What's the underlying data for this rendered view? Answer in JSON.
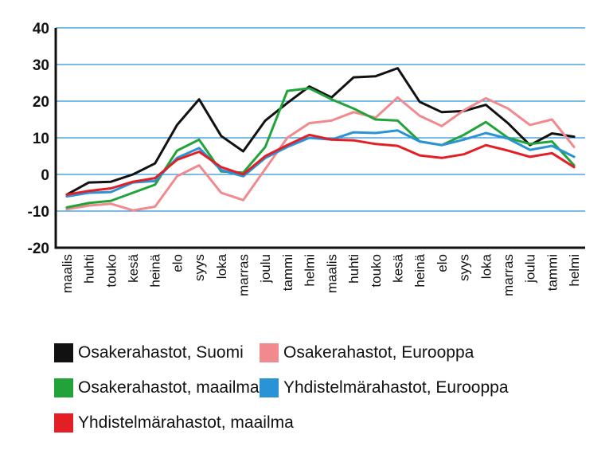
{
  "chart_data": {
    "type": "line",
    "categories": [
      "maalis",
      "huhti",
      "touko",
      "kesä",
      "heinä",
      "elo",
      "syys",
      "loka",
      "marras",
      "joulu",
      "tammi",
      "helmi",
      "maalis",
      "huhti",
      "touko",
      "kesä",
      "heinä",
      "elo",
      "syys",
      "loka",
      "marras",
      "joulu",
      "tammi",
      "helmi"
    ],
    "ylim": [
      -20,
      40
    ],
    "yticks": [
      -20,
      -10,
      0,
      10,
      20,
      30,
      40
    ],
    "ytick_labels": [
      "-20",
      "-10",
      "0",
      "10",
      "20",
      "30",
      "40"
    ],
    "grid": true,
    "legend_position": "bottom",
    "series": [
      {
        "name": "Osakerahastot, Suomi",
        "color": "#111111",
        "values": [
          -5.5,
          -2.2,
          -2.0,
          0.0,
          3.0,
          13.5,
          20.5,
          10.5,
          6.3,
          14.7,
          19.5,
          24.0,
          21.0,
          26.5,
          26.8,
          29.0,
          19.8,
          17.0,
          17.3,
          19.0,
          14.0,
          8.0,
          11.2,
          10.3
        ]
      },
      {
        "name": "Osakerahastot, Eurooppa",
        "color": "#f08a8f",
        "values": [
          -9.5,
          -8.5,
          -8.0,
          -9.8,
          -8.8,
          -0.5,
          2.5,
          -5.0,
          -7.0,
          1.5,
          10.0,
          14.0,
          14.7,
          17.0,
          15.5,
          21.0,
          16.0,
          13.2,
          17.5,
          20.8,
          18.0,
          13.5,
          15.0,
          7.5
        ]
      },
      {
        "name": "Osakerahastot, maailma",
        "color": "#22a33a",
        "values": [
          -9.0,
          -7.8,
          -7.2,
          -5.0,
          -2.8,
          6.5,
          9.5,
          0.8,
          0.5,
          7.5,
          22.8,
          23.5,
          20.5,
          18.0,
          15.0,
          14.7,
          9.0,
          8.0,
          10.8,
          14.3,
          10.0,
          8.3,
          9.0,
          2.5
        ]
      },
      {
        "name": "Yhdistelmärahastot, Eurooppa",
        "color": "#2a93d5",
        "values": [
          -6.0,
          -5.0,
          -4.8,
          -2.2,
          -1.8,
          4.5,
          7.2,
          1.2,
          -0.5,
          4.5,
          7.5,
          10.0,
          9.5,
          11.5,
          11.3,
          12.0,
          9.0,
          8.0,
          9.5,
          11.3,
          9.8,
          6.7,
          7.8,
          4.8
        ]
      },
      {
        "name": "Yhdistelmärahastot, maailma",
        "color": "#e31e24",
        "values": [
          -5.5,
          -4.5,
          -3.8,
          -2.0,
          -1.0,
          4.0,
          6.2,
          2.0,
          0.0,
          5.0,
          8.0,
          10.8,
          9.5,
          9.3,
          8.3,
          7.8,
          5.2,
          4.5,
          5.5,
          8.0,
          6.5,
          4.8,
          5.8,
          2.0
        ]
      }
    ]
  }
}
